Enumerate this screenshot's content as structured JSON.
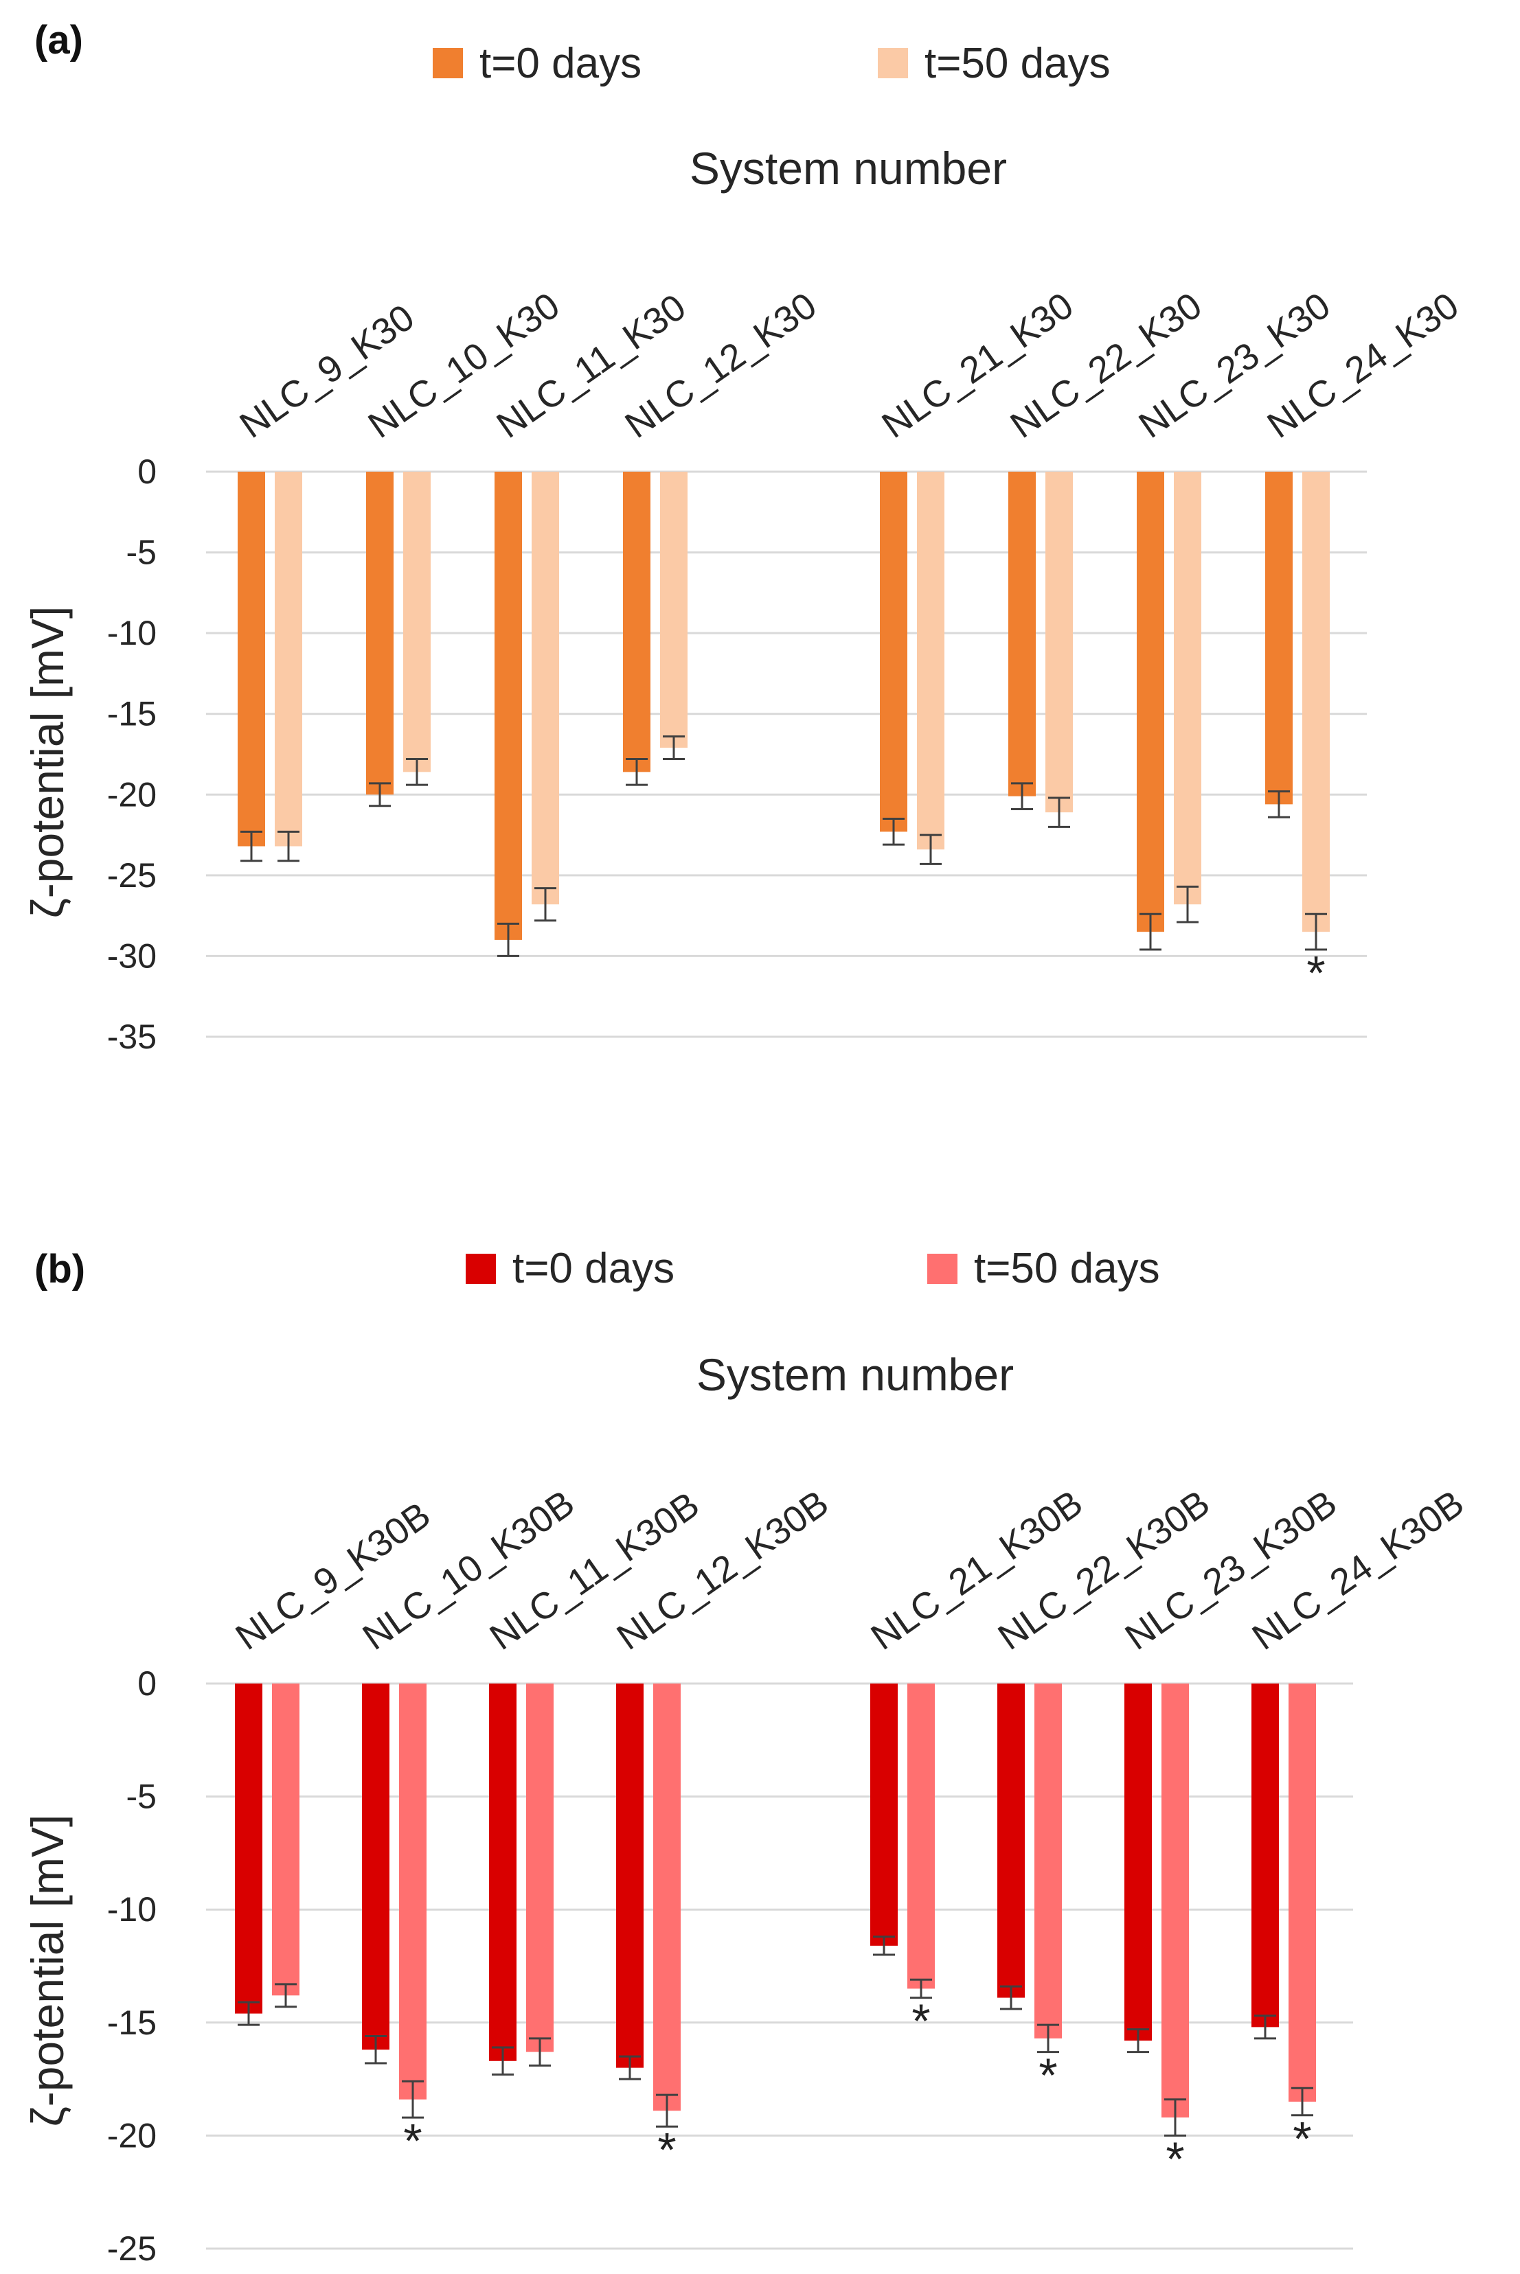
{
  "chart_data": [
    {
      "panel_label": "(a)",
      "type": "bar",
      "xlabel": "System number",
      "ylabel": "ζ-potential  [mV]",
      "ylim": [
        -35,
        0
      ],
      "yticks": [
        0,
        -5,
        -10,
        -15,
        -20,
        -25,
        -30,
        -35
      ],
      "yticks_text": [
        "0",
        "-5",
        "-10",
        "-15",
        "-20",
        "-25",
        "-30",
        "-35"
      ],
      "grid": true,
      "legend_position": "top",
      "categories": [
        "NLC_9_K30",
        "NLC_10_K30",
        "NLC_11_K30",
        "NLC_12_K30",
        "NLC_21_K30",
        "NLC_22_K30",
        "NLC_23_K30",
        "NLC_24_K30"
      ],
      "slots": [
        0,
        1,
        2,
        3,
        5,
        6,
        7,
        8
      ],
      "series": [
        {
          "name": "t=0 days",
          "color": "#f07f2f",
          "values": [
            -23.2,
            -20.0,
            -29.0,
            -18.6,
            -22.3,
            -20.1,
            -28.5,
            -20.6
          ],
          "errors": [
            0.9,
            0.7,
            1.0,
            0.8,
            0.8,
            0.8,
            1.1,
            0.8
          ]
        },
        {
          "name": "t=50 days",
          "color": "#fbcaa6",
          "values": [
            -23.2,
            -18.6,
            -26.8,
            -17.1,
            -23.4,
            -21.1,
            -26.8,
            -28.5
          ],
          "errors": [
            0.9,
            0.8,
            1.0,
            0.7,
            0.9,
            0.9,
            1.1,
            1.1
          ]
        }
      ],
      "significance": [
        {
          "category_index": 7,
          "series_index": 1,
          "text": "*"
        }
      ]
    },
    {
      "panel_label": "(b)",
      "type": "bar",
      "xlabel": "System number",
      "ylabel": "ζ-potential  [mV]",
      "ylim": [
        -25,
        0
      ],
      "yticks": [
        0,
        -5,
        -10,
        -15,
        -20,
        -25
      ],
      "yticks_text": [
        "0",
        "-5",
        "-10",
        "-15",
        "-20",
        "-25"
      ],
      "grid": true,
      "legend_position": "top",
      "categories": [
        "NLC_9_K30B",
        "NLC_10_K30B",
        "NLC_11_K30B",
        "NLC_12_K30B",
        "NLC_21_K30B",
        "NLC_22_K30B",
        "NLC_23_K30B",
        "NLC_24_K30B"
      ],
      "slots": [
        0,
        1,
        2,
        3,
        5,
        6,
        7,
        8
      ],
      "series": [
        {
          "name": "t=0 days",
          "color": "#d90000",
          "values": [
            -14.6,
            -16.2,
            -16.7,
            -17.0,
            -11.6,
            -13.9,
            -15.8,
            -15.2
          ],
          "errors": [
            0.5,
            0.6,
            0.6,
            0.5,
            0.4,
            0.5,
            0.5,
            0.5
          ]
        },
        {
          "name": "t=50 days",
          "color": "#ff7070",
          "values": [
            -13.8,
            -18.4,
            -16.3,
            -18.9,
            -13.5,
            -15.7,
            -19.2,
            -18.5
          ],
          "errors": [
            0.5,
            0.8,
            0.6,
            0.7,
            0.4,
            0.6,
            0.8,
            0.6
          ]
        }
      ],
      "significance": [
        {
          "category_index": 1,
          "series_index": 1,
          "text": "*"
        },
        {
          "category_index": 3,
          "series_index": 1,
          "text": "*"
        },
        {
          "category_index": 4,
          "series_index": 1,
          "text": "*"
        },
        {
          "category_index": 5,
          "series_index": 1,
          "text": "*"
        },
        {
          "category_index": 6,
          "series_index": 1,
          "text": "*"
        },
        {
          "category_index": 7,
          "series_index": 1,
          "text": "*"
        }
      ]
    }
  ]
}
